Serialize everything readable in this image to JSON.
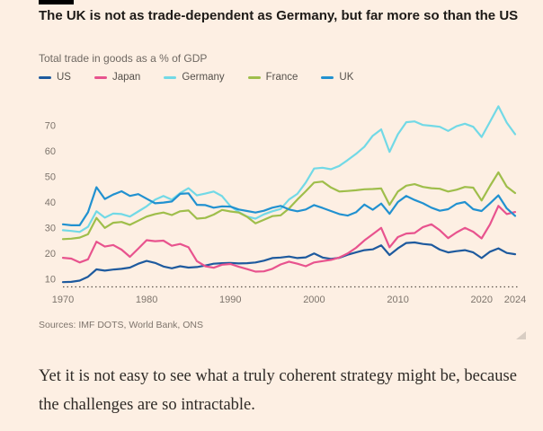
{
  "page": {
    "background": "#fdefe3",
    "accent_color": "#000000"
  },
  "chart": {
    "title": "The UK is not as trade-dependent as Germany, but far more so than the US",
    "subtitle": "Total trade in goods as a % of GDP",
    "source": "Sources: IMF DOTS, World Bank, ONS"
  },
  "chart_data": {
    "type": "line",
    "title": "The UK is not as trade-dependent as Germany, but far more so than the US",
    "ylabel": "Total trade in goods as a % of GDP",
    "xlabel": "",
    "grid": false,
    "legend_position": "top",
    "xlim": [
      1970,
      2024
    ],
    "ylim": [
      5,
      80
    ],
    "x_ticks": [
      1970,
      1980,
      1990,
      2000,
      2010,
      2020,
      2024
    ],
    "y_ticks": [
      10,
      20,
      30,
      40,
      50,
      60,
      70
    ],
    "axis_text_color": "#7d746c",
    "baseline_color": "#5e564e",
    "x": [
      1970,
      1971,
      1972,
      1973,
      1974,
      1975,
      1976,
      1977,
      1978,
      1979,
      1980,
      1981,
      1982,
      1983,
      1984,
      1985,
      1986,
      1987,
      1988,
      1989,
      1990,
      1991,
      1992,
      1993,
      1994,
      1995,
      1996,
      1997,
      1998,
      1999,
      2000,
      2001,
      2002,
      2003,
      2004,
      2005,
      2006,
      2007,
      2008,
      2009,
      2010,
      2011,
      2012,
      2013,
      2014,
      2015,
      2016,
      2017,
      2018,
      2019,
      2020,
      2021,
      2022,
      2023,
      2024
    ],
    "series": [
      {
        "name": "US",
        "color": "#1e5a9e",
        "values": [
          8.7,
          8.8,
          9.3,
          10.8,
          13.7,
          13.2,
          13.6,
          13.9,
          14.4,
          15.9,
          17.0,
          16.2,
          14.8,
          14.1,
          14.9,
          14.4,
          14.6,
          15.2,
          15.9,
          16.1,
          16.2,
          16.0,
          16.1,
          16.4,
          17.1,
          18.1,
          18.3,
          18.7,
          18.1,
          18.4,
          19.9,
          18.3,
          17.8,
          18.2,
          19.4,
          20.3,
          21.2,
          21.5,
          23.1,
          19.3,
          21.9,
          24.0,
          24.2,
          23.6,
          23.3,
          21.4,
          20.3,
          20.8,
          21.2,
          20.3,
          18.1,
          20.6,
          21.9,
          20.1,
          19.6
        ]
      },
      {
        "name": "Japan",
        "color": "#e8538e",
        "values": [
          18.2,
          17.9,
          16.4,
          17.6,
          24.5,
          22.6,
          23.2,
          21.4,
          18.6,
          21.8,
          25.1,
          24.7,
          24.9,
          22.9,
          23.6,
          22.3,
          16.9,
          14.9,
          14.3,
          15.5,
          15.8,
          14.7,
          13.8,
          12.8,
          12.9,
          13.9,
          15.6,
          16.7,
          15.9,
          14.9,
          16.4,
          16.9,
          17.4,
          18.3,
          19.9,
          22.1,
          25.0,
          27.4,
          29.9,
          22.3,
          26.3,
          27.7,
          27.9,
          30.2,
          31.3,
          29.0,
          25.9,
          28.1,
          29.9,
          28.4,
          25.8,
          31.3,
          38.5,
          35.3,
          36.1
        ]
      },
      {
        "name": "Germany",
        "color": "#72d9e6",
        "values": [
          29.0,
          28.7,
          28.3,
          30.3,
          36.4,
          33.9,
          35.5,
          35.3,
          34.3,
          36.3,
          38.3,
          40.9,
          42.4,
          40.9,
          43.5,
          45.4,
          42.6,
          43.3,
          44.1,
          42.3,
          38.4,
          36.1,
          34.3,
          33.5,
          35.2,
          36.4,
          37.3,
          41.0,
          43.2,
          47.6,
          53.1,
          53.4,
          52.8,
          54.1,
          56.4,
          58.8,
          61.6,
          65.9,
          68.4,
          59.6,
          66.5,
          71.2,
          71.5,
          70.1,
          69.8,
          69.4,
          67.8,
          69.6,
          70.6,
          69.4,
          65.4,
          71.4,
          77.4,
          71.0,
          66.5
        ]
      },
      {
        "name": "France",
        "color": "#9fbe4b",
        "values": [
          25.5,
          25.7,
          26.1,
          27.4,
          33.8,
          29.9,
          31.9,
          32.2,
          31.1,
          32.7,
          34.3,
          35.3,
          35.9,
          34.9,
          36.4,
          36.7,
          33.5,
          33.8,
          35.1,
          36.9,
          36.3,
          35.9,
          34.2,
          31.7,
          33.1,
          34.5,
          34.8,
          37.5,
          41.0,
          44.2,
          47.6,
          48.0,
          45.7,
          44.1,
          44.3,
          44.6,
          45.0,
          45.1,
          45.3,
          38.9,
          44.1,
          46.4,
          47.0,
          45.9,
          45.4,
          45.2,
          44.1,
          44.8,
          45.9,
          45.6,
          40.6,
          46.3,
          51.6,
          46.0,
          43.5
        ]
      },
      {
        "name": "UK",
        "color": "#2191d0",
        "values": [
          31.3,
          30.9,
          30.9,
          36.0,
          45.8,
          41.2,
          42.9,
          44.2,
          42.4,
          43.1,
          41.3,
          39.5,
          39.8,
          40.2,
          43.2,
          43.4,
          38.9,
          38.8,
          37.8,
          38.3,
          38.2,
          37.1,
          36.5,
          35.9,
          36.6,
          37.8,
          38.5,
          37.1,
          36.4,
          37.1,
          38.8,
          37.7,
          36.5,
          35.3,
          34.7,
          36.0,
          39.0,
          37.0,
          39.4,
          35.4,
          40.0,
          42.4,
          40.8,
          39.5,
          37.8,
          36.6,
          37.2,
          39.3,
          40.0,
          37.2,
          36.5,
          39.5,
          42.6,
          37.5,
          34.6
        ]
      }
    ]
  },
  "article": {
    "paragraph": "Yet it is not easy to see what a truly coherent strategy might be, because the challenges are so intractable."
  }
}
